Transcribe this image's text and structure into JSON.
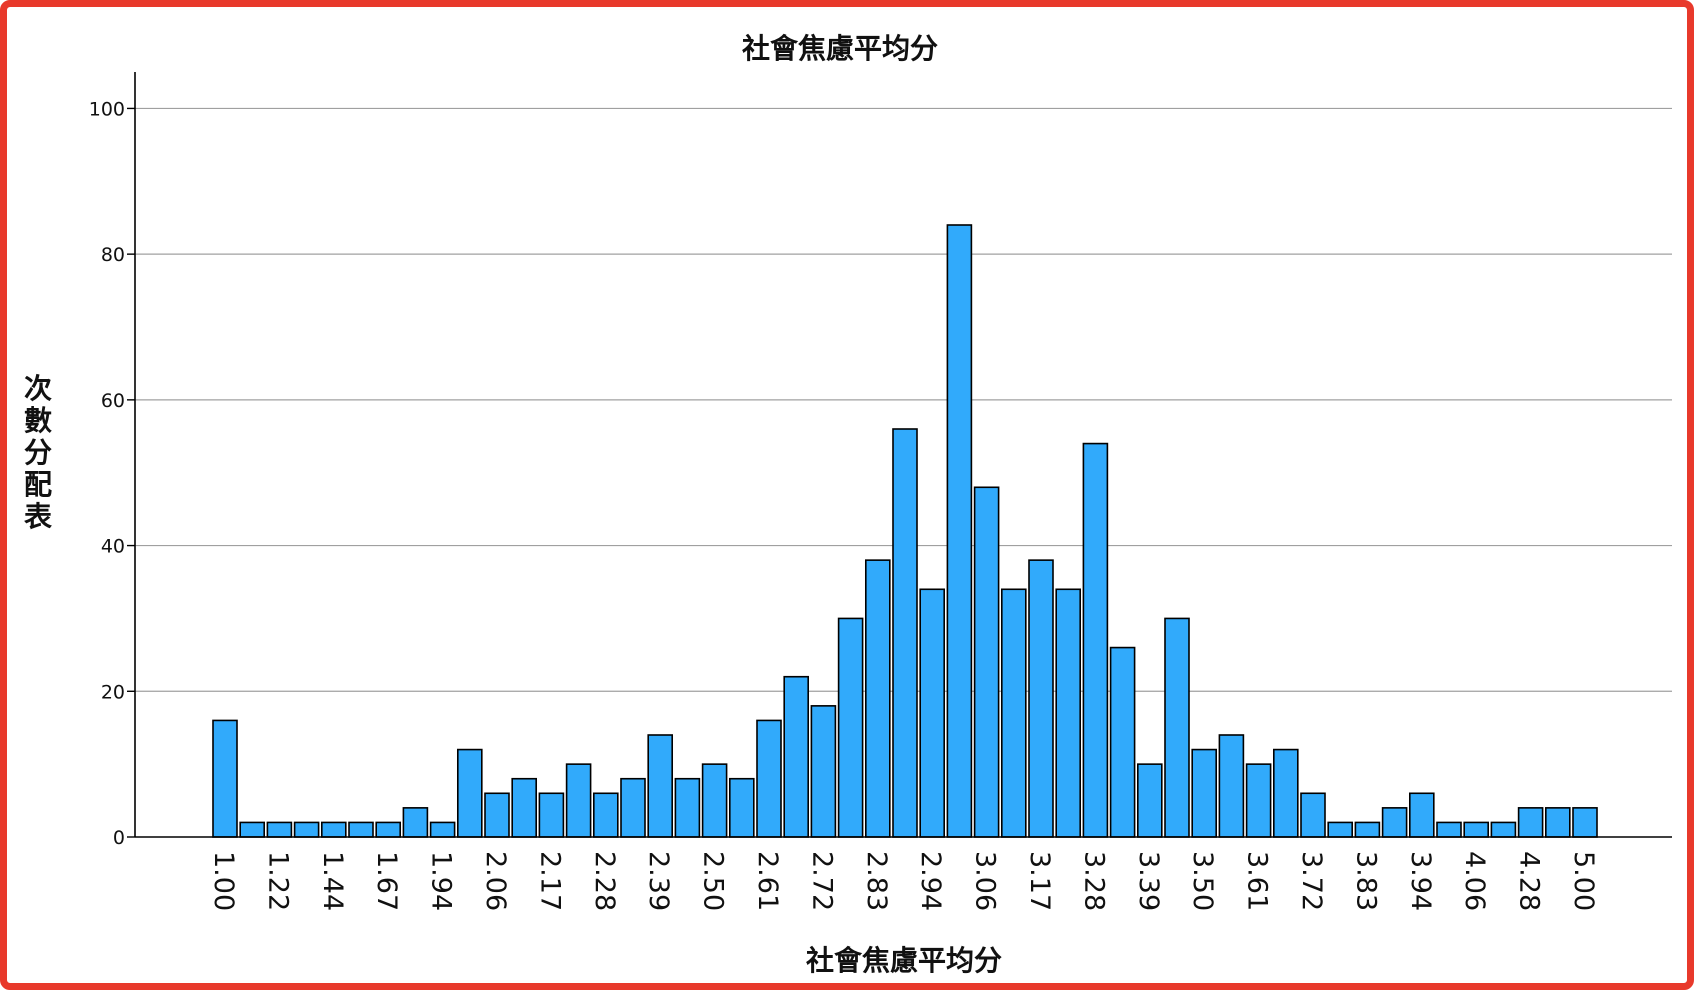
{
  "chart_data": {
    "type": "bar",
    "title": "社會焦慮平均分",
    "xlabel": "社會焦慮平均分",
    "ylabel": "次數分配表",
    "ylim": [
      0,
      105
    ],
    "yticks": [
      0,
      20,
      40,
      60,
      80,
      100
    ],
    "grid": true,
    "bar_color": "#31aafb",
    "bar_edge_color": "#000000",
    "x_tick_labels": [
      "1.00",
      "1.22",
      "1.44",
      "1.67",
      "1.94",
      "2.06",
      "2.17",
      "2.28",
      "2.39",
      "2.50",
      "2.61",
      "2.72",
      "2.83",
      "2.94",
      "3.06",
      "3.17",
      "3.28",
      "3.39",
      "3.50",
      "3.61",
      "3.72",
      "3.83",
      "3.94",
      "4.06",
      "4.28",
      "5.00"
    ],
    "values": [
      16,
      2,
      2,
      2,
      2,
      2,
      2,
      4,
      2,
      12,
      6,
      8,
      6,
      10,
      6,
      8,
      14,
      8,
      10,
      8,
      16,
      22,
      18,
      30,
      38,
      56,
      34,
      84,
      48,
      34,
      38,
      34,
      54,
      26,
      10,
      30,
      12,
      14,
      10,
      12,
      6,
      2,
      2,
      4,
      6,
      2,
      2,
      2,
      4,
      4,
      4
    ]
  }
}
